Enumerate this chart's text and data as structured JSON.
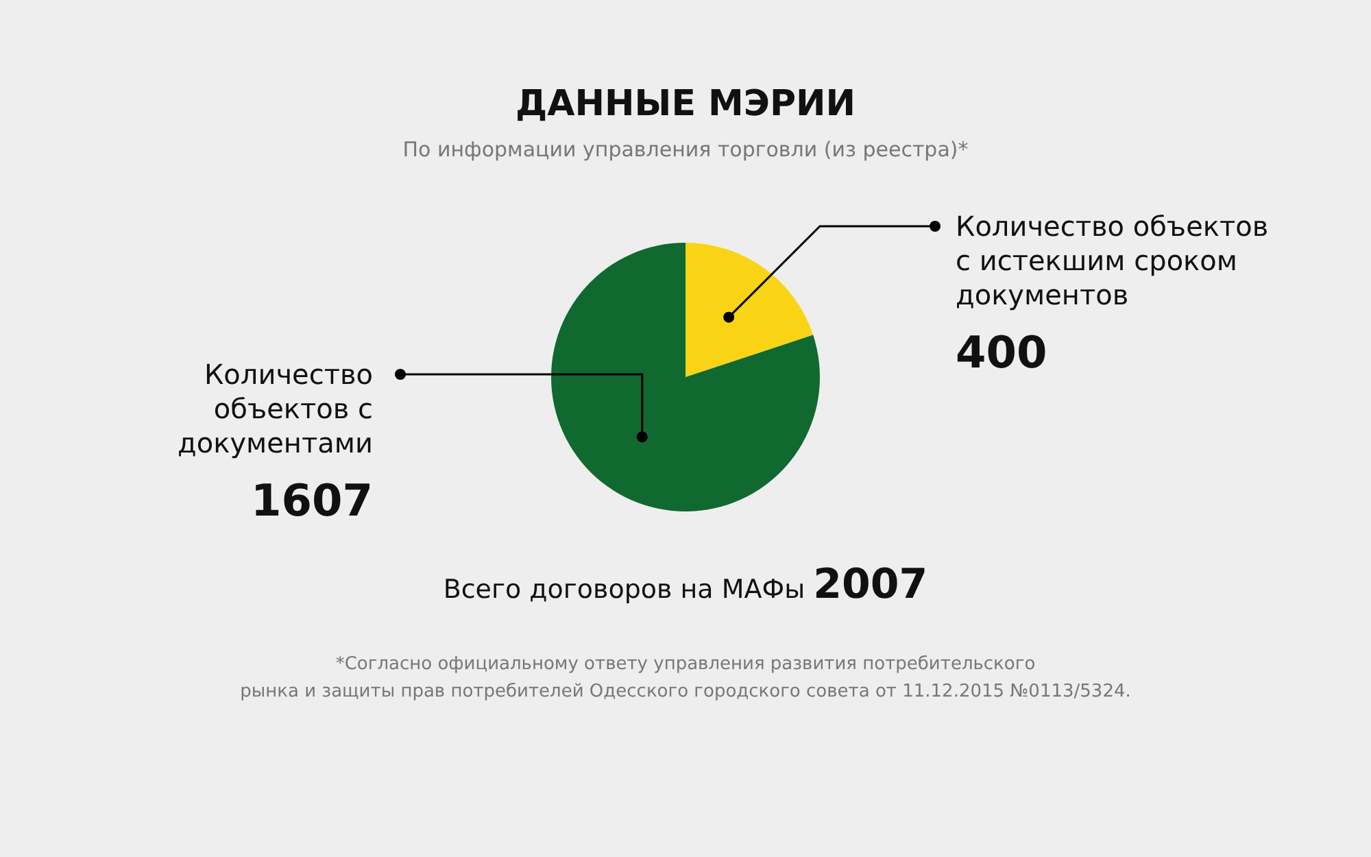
{
  "chart_data": {
    "type": "pie",
    "title": "ДАННЫЕ МЭРИИ",
    "subtitle": "По информации управления торговли (из реестра)*",
    "categories": [
      "Количество объектов с истекшим сроком документов",
      "Количество объектов с документами"
    ],
    "values": [
      400,
      1607
    ],
    "colors": [
      "#f9d416",
      "#10692f"
    ],
    "data_labels": true,
    "annotations": [
      "Всего договоров на МАФы 2007",
      "*Согласно официальному ответу управления развития потребительского\nрынка и защиты прав потребителей Одесского городского совета от 11.12.2015 №0113/5324."
    ]
  }
}
